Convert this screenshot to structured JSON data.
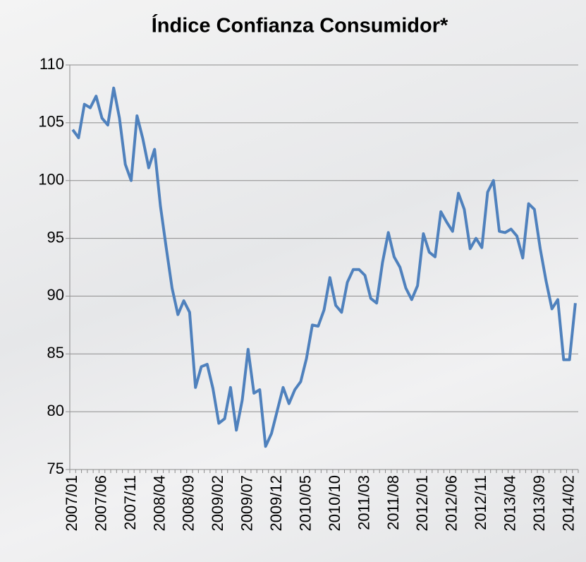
{
  "chart_data": {
    "type": "line",
    "title": "Índice Confianza Consumidor*",
    "categories": [
      "2007/01",
      null,
      null,
      null,
      null,
      "2007/06",
      null,
      null,
      null,
      null,
      "2007/11",
      null,
      null,
      null,
      null,
      "2008/04",
      null,
      null,
      null,
      null,
      "2008/09",
      null,
      null,
      null,
      null,
      "2009/02",
      null,
      null,
      null,
      null,
      "2009/07",
      null,
      null,
      null,
      null,
      "2009/12",
      null,
      null,
      null,
      null,
      "2010/05",
      null,
      null,
      null,
      null,
      "2010/10",
      null,
      null,
      null,
      null,
      "2011/03",
      null,
      null,
      null,
      null,
      "2011/08",
      null,
      null,
      null,
      null,
      "2012/01",
      null,
      null,
      null,
      null,
      "2012/06",
      null,
      null,
      null,
      null,
      "2012/11",
      null,
      null,
      null,
      null,
      "2013/04",
      null,
      null,
      null,
      null,
      "2013/09",
      null,
      null,
      null,
      null,
      "2014/02",
      null
    ],
    "series": [
      {
        "name": "Índice Confianza Consumidor",
        "color": "#4f81bd",
        "values": [
          104.4,
          103.7,
          106.6,
          106.3,
          107.3,
          105.4,
          104.8,
          108.0,
          105.4,
          101.4,
          100.0,
          105.6,
          103.6,
          101.1,
          102.7,
          97.8,
          94.2,
          90.7,
          88.4,
          89.6,
          88.6,
          82.1,
          83.9,
          84.1,
          82.0,
          79.0,
          79.4,
          82.1,
          78.4,
          81.0,
          85.4,
          81.6,
          81.9,
          77.0,
          78.1,
          80.1,
          82.1,
          80.7,
          81.9,
          82.6,
          84.6,
          87.5,
          87.4,
          88.8,
          91.6,
          89.2,
          88.6,
          91.2,
          92.3,
          92.3,
          91.8,
          89.8,
          89.4,
          92.9,
          95.5,
          93.4,
          92.5,
          90.7,
          89.7,
          90.9,
          95.4,
          93.8,
          93.4,
          97.3,
          96.4,
          95.6,
          98.9,
          97.5,
          94.1,
          95.0,
          94.2,
          99.0,
          100.0,
          95.6,
          95.5,
          95.8,
          95.2,
          93.3,
          98.0,
          97.5,
          94.1,
          91.3,
          88.9,
          89.7,
          84.5,
          84.5,
          89.4
        ]
      }
    ],
    "ylim": [
      75,
      110
    ],
    "yticks": [
      75,
      80,
      85,
      90,
      95,
      100,
      105,
      110
    ],
    "grid": true
  }
}
